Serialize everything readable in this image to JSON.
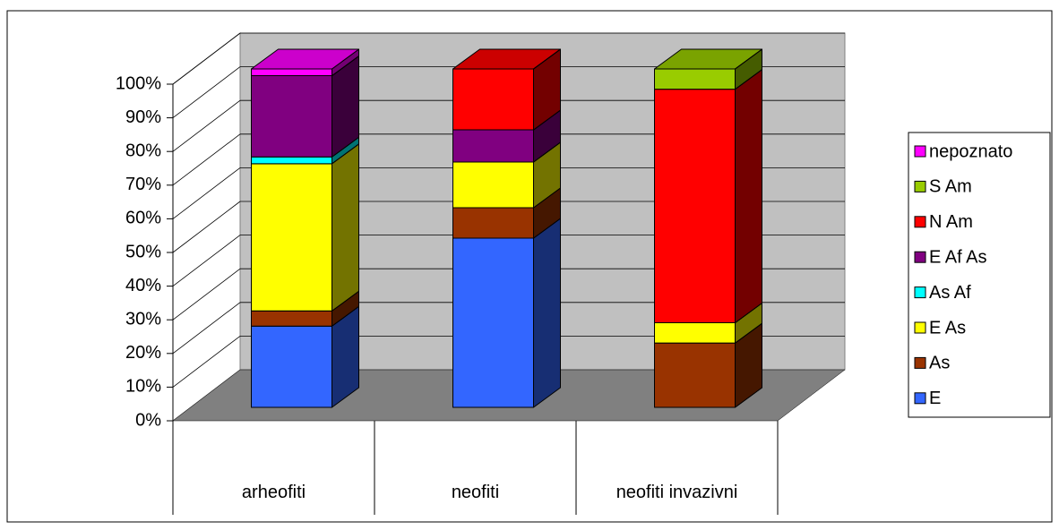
{
  "chart_data": {
    "type": "bar3d_stacked_percent",
    "categories": [
      "arheofiti",
      "neofiti",
      "neofiti invazivni"
    ],
    "series": [
      {
        "name": "E",
        "color": "#3366ff",
        "values": [
          24,
          50,
          0
        ]
      },
      {
        "name": "As",
        "color": "#993300",
        "values": [
          4.5,
          9,
          19
        ]
      },
      {
        "name": "E As",
        "color": "#ffff00",
        "values": [
          43.5,
          13.5,
          6
        ]
      },
      {
        "name": "As Af",
        "color": "#00ffff",
        "values": [
          2,
          0,
          0
        ]
      },
      {
        "name": "E Af As",
        "color": "#800080",
        "values": [
          24,
          9.5,
          0
        ]
      },
      {
        "name": "N Am",
        "color": "#ff0000",
        "values": [
          0,
          18,
          69
        ]
      },
      {
        "name": "S Am",
        "color": "#99cc00",
        "values": [
          0,
          0,
          6
        ]
      },
      {
        "name": "nepoznato",
        "color": "#ff00ff",
        "values": [
          2,
          0,
          0
        ]
      }
    ],
    "ylim": [
      0,
      100
    ],
    "yticks": [
      {
        "value": 0,
        "label": "0%"
      },
      {
        "value": 10,
        "label": "10%"
      },
      {
        "value": 20,
        "label": "20%"
      },
      {
        "value": 30,
        "label": "30%"
      },
      {
        "value": 40,
        "label": "40%"
      },
      {
        "value": 50,
        "label": "50%"
      },
      {
        "value": 60,
        "label": "60%"
      },
      {
        "value": 70,
        "label": "70%"
      },
      {
        "value": 80,
        "label": "80%"
      },
      {
        "value": 90,
        "label": "90%"
      },
      {
        "value": 100,
        "label": "100%"
      }
    ],
    "grid": true,
    "legend": "right"
  }
}
